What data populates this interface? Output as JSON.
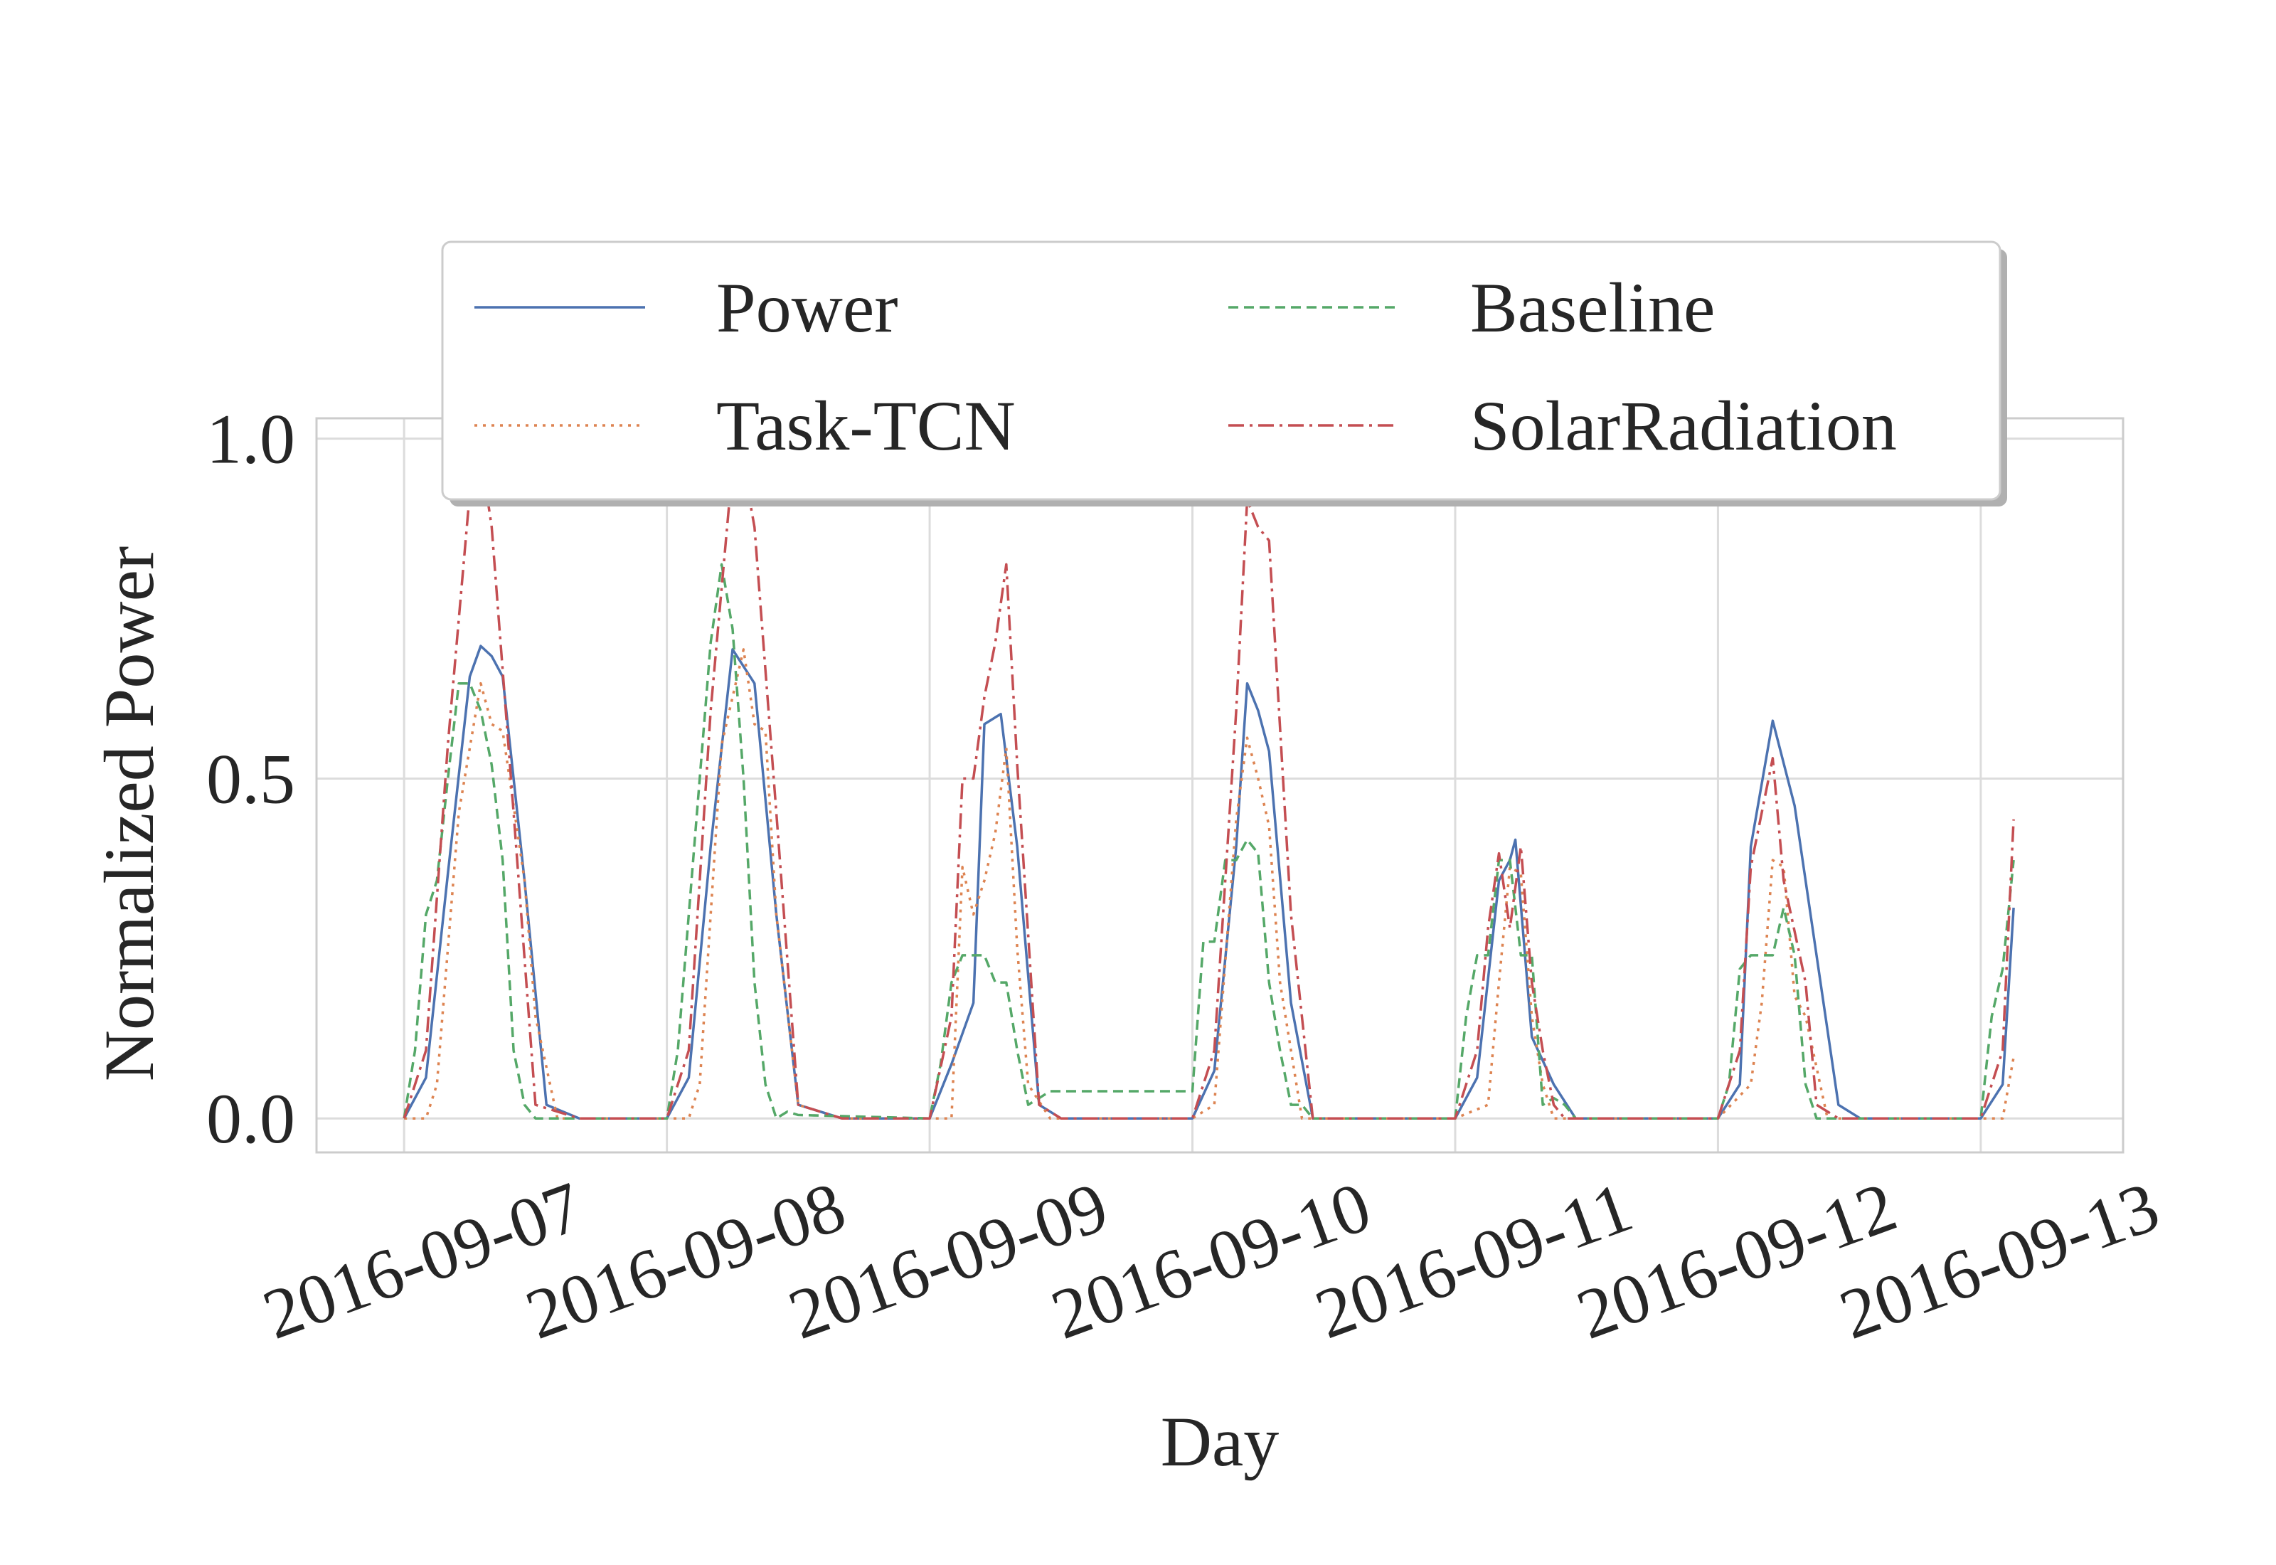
{
  "chart_data": {
    "type": "line",
    "title": "",
    "xlabel": "Day",
    "ylabel": "Normalized Power",
    "xlim": [
      "2016-09-06 16:00",
      "2016-09-13 13:00"
    ],
    "ylim": [
      -0.05,
      1.03
    ],
    "grid": true,
    "legend": {
      "placement": "top-center",
      "columns": 2
    },
    "x_ticks": [
      "2016-09-07",
      "2016-09-08",
      "2016-09-09",
      "2016-09-10",
      "2016-09-11",
      "2016-09-12",
      "2016-09-13"
    ],
    "y_ticks": [
      "0.0",
      "0.5",
      "1.0"
    ],
    "x_tick_values": [
      "2016-09-07 00:00",
      "2016-09-08 00:00",
      "2016-09-09 00:00",
      "2016-09-10 00:00",
      "2016-09-11 00:00",
      "2016-09-12 00:00",
      "2016-09-13 00:00"
    ],
    "y_tick_values": [
      0.0,
      0.5,
      1.0
    ],
    "series": [
      {
        "name": "Power",
        "color": "#4c72b0",
        "dash": "solid",
        "points": [
          [
            "2016-09-07 00:00",
            0.0
          ],
          [
            "2016-09-07 02:00",
            0.06
          ],
          [
            "2016-09-07 04:00",
            0.36
          ],
          [
            "2016-09-07 06:00",
            0.65
          ],
          [
            "2016-09-07 07:00",
            0.695
          ],
          [
            "2016-09-07 08:00",
            0.68
          ],
          [
            "2016-09-07 09:00",
            0.65
          ],
          [
            "2016-09-07 11:00",
            0.35
          ],
          [
            "2016-09-07 13:00",
            0.02
          ],
          [
            "2016-09-07 16:00",
            0.0
          ],
          [
            "2016-09-08 00:00",
            0.0
          ],
          [
            "2016-09-08 02:00",
            0.06
          ],
          [
            "2016-09-08 04:00",
            0.4
          ],
          [
            "2016-09-08 06:00",
            0.69
          ],
          [
            "2016-09-08 08:00",
            0.64
          ],
          [
            "2016-09-08 10:00",
            0.3
          ],
          [
            "2016-09-08 12:00",
            0.02
          ],
          [
            "2016-09-08 16:00",
            0.0
          ],
          [
            "2016-09-09 00:00",
            0.0
          ],
          [
            "2016-09-09 02:00",
            0.08
          ],
          [
            "2016-09-09 04:00",
            0.17
          ],
          [
            "2016-09-09 05:00",
            0.58
          ],
          [
            "2016-09-09 06:00",
            0.59
          ],
          [
            "2016-09-09 06:30",
            0.595
          ],
          [
            "2016-09-09 08:00",
            0.4
          ],
          [
            "2016-09-09 10:00",
            0.02
          ],
          [
            "2016-09-09 12:00",
            0.0
          ],
          [
            "2016-09-10 00:00",
            0.0
          ],
          [
            "2016-09-10 02:00",
            0.07
          ],
          [
            "2016-09-10 04:00",
            0.4
          ],
          [
            "2016-09-10 05:00",
            0.64
          ],
          [
            "2016-09-10 06:00",
            0.6
          ],
          [
            "2016-09-10 07:00",
            0.54
          ],
          [
            "2016-09-10 09:00",
            0.17
          ],
          [
            "2016-09-10 11:00",
            0.0
          ],
          [
            "2016-09-11 00:00",
            0.0
          ],
          [
            "2016-09-11 02:00",
            0.06
          ],
          [
            "2016-09-11 04:00",
            0.35
          ],
          [
            "2016-09-11 05:00",
            0.38
          ],
          [
            "2016-09-11 05:30",
            0.41
          ],
          [
            "2016-09-11 07:00",
            0.12
          ],
          [
            "2016-09-11 09:00",
            0.05
          ],
          [
            "2016-09-11 11:00",
            0.0
          ],
          [
            "2016-09-12 00:00",
            0.0
          ],
          [
            "2016-09-12 02:00",
            0.05
          ],
          [
            "2016-09-12 03:00",
            0.4
          ],
          [
            "2016-09-12 05:00",
            0.585
          ],
          [
            "2016-09-12 07:00",
            0.46
          ],
          [
            "2016-09-12 09:00",
            0.24
          ],
          [
            "2016-09-12 11:00",
            0.02
          ],
          [
            "2016-09-12 13:00",
            0.0
          ],
          [
            "2016-09-13 00:00",
            0.0
          ],
          [
            "2016-09-13 02:00",
            0.05
          ],
          [
            "2016-09-13 03:00",
            0.31
          ]
        ]
      },
      {
        "name": "Task-TCN",
        "color": "#dd8452",
        "dash": "dotted",
        "points": [
          [
            "2016-09-07 00:00",
            0.0
          ],
          [
            "2016-09-07 02:00",
            0.0
          ],
          [
            "2016-09-07 03:00",
            0.05
          ],
          [
            "2016-09-07 05:00",
            0.45
          ],
          [
            "2016-09-07 07:00",
            0.64
          ],
          [
            "2016-09-07 08:00",
            0.58
          ],
          [
            "2016-09-07 09:00",
            0.57
          ],
          [
            "2016-09-07 11:00",
            0.35
          ],
          [
            "2016-09-07 12:00",
            0.15
          ],
          [
            "2016-09-07 14:00",
            0.0
          ],
          [
            "2016-09-07 16:00",
            0.0
          ],
          [
            "2016-09-08 00:00",
            0.0
          ],
          [
            "2016-09-08 02:00",
            0.0
          ],
          [
            "2016-09-08 03:00",
            0.05
          ],
          [
            "2016-09-08 05:00",
            0.55
          ],
          [
            "2016-09-08 07:00",
            0.69
          ],
          [
            "2016-09-08 08:00",
            0.58
          ],
          [
            "2016-09-08 09:00",
            0.57
          ],
          [
            "2016-09-08 10:00",
            0.3
          ],
          [
            "2016-09-08 12:00",
            0.02
          ],
          [
            "2016-09-08 16:00",
            0.0
          ],
          [
            "2016-09-09 00:00",
            0.0
          ],
          [
            "2016-09-09 02:00",
            0.0
          ],
          [
            "2016-09-09 03:00",
            0.37
          ],
          [
            "2016-09-09 04:00",
            0.3
          ],
          [
            "2016-09-09 05:00",
            0.35
          ],
          [
            "2016-09-09 06:00",
            0.42
          ],
          [
            "2016-09-09 07:00",
            0.545
          ],
          [
            "2016-09-09 08:00",
            0.25
          ],
          [
            "2016-09-09 09:00",
            0.05
          ],
          [
            "2016-09-09 11:00",
            0.0
          ],
          [
            "2016-09-10 00:00",
            0.0
          ],
          [
            "2016-09-10 02:00",
            0.02
          ],
          [
            "2016-09-10 04:00",
            0.44
          ],
          [
            "2016-09-10 05:00",
            0.56
          ],
          [
            "2016-09-10 06:00",
            0.5
          ],
          [
            "2016-09-10 07:00",
            0.43
          ],
          [
            "2016-09-10 08:00",
            0.2
          ],
          [
            "2016-09-10 10:00",
            0.0
          ],
          [
            "2016-09-11 00:00",
            0.0
          ],
          [
            "2016-09-11 03:00",
            0.02
          ],
          [
            "2016-09-11 04:00",
            0.2
          ],
          [
            "2016-09-11 05:00",
            0.37
          ],
          [
            "2016-09-11 06:00",
            0.36
          ],
          [
            "2016-09-11 07:00",
            0.15
          ],
          [
            "2016-09-11 08:00",
            0.05
          ],
          [
            "2016-09-11 09:00",
            0.0
          ],
          [
            "2016-09-12 00:00",
            0.0
          ],
          [
            "2016-09-12 03:00",
            0.05
          ],
          [
            "2016-09-12 04:00",
            0.17
          ],
          [
            "2016-09-12 05:00",
            0.38
          ],
          [
            "2016-09-12 06:00",
            0.37
          ],
          [
            "2016-09-12 07:00",
            0.18
          ],
          [
            "2016-09-12 08:00",
            0.15
          ],
          [
            "2016-09-12 10:00",
            0.0
          ],
          [
            "2016-09-13 00:00",
            0.0
          ],
          [
            "2016-09-13 02:00",
            0.0
          ],
          [
            "2016-09-13 03:00",
            0.09
          ]
        ]
      },
      {
        "name": "Baseline",
        "color": "#55a868",
        "dash": "dashed",
        "points": [
          [
            "2016-09-07 00:00",
            0.0
          ],
          [
            "2016-09-07 01:00",
            0.1
          ],
          [
            "2016-09-07 02:00",
            0.3
          ],
          [
            "2016-09-07 03:00",
            0.35
          ],
          [
            "2016-09-07 04:00",
            0.5
          ],
          [
            "2016-09-07 05:00",
            0.64
          ],
          [
            "2016-09-07 06:00",
            0.64
          ],
          [
            "2016-09-07 07:00",
            0.6
          ],
          [
            "2016-09-07 08:00",
            0.52
          ],
          [
            "2016-09-07 09:00",
            0.38
          ],
          [
            "2016-09-07 10:00",
            0.1
          ],
          [
            "2016-09-07 11:00",
            0.02
          ],
          [
            "2016-09-07 12:00",
            0.0
          ],
          [
            "2016-09-08 00:00",
            0.0
          ],
          [
            "2016-09-08 01:00",
            0.1
          ],
          [
            "2016-09-08 02:00",
            0.3
          ],
          [
            "2016-09-08 03:00",
            0.5
          ],
          [
            "2016-09-08 04:00",
            0.7
          ],
          [
            "2016-09-08 05:00",
            0.815
          ],
          [
            "2016-09-08 06:00",
            0.72
          ],
          [
            "2016-09-08 07:00",
            0.5
          ],
          [
            "2016-09-08 08:00",
            0.2
          ],
          [
            "2016-09-08 09:00",
            0.05
          ],
          [
            "2016-09-08 10:00",
            0.0
          ],
          [
            "2016-09-08 11:00",
            0.01
          ],
          [
            "2016-09-08 12:00",
            0.005
          ],
          [
            "2016-09-09 00:00",
            0.0
          ],
          [
            "2016-09-09 01:00",
            0.08
          ],
          [
            "2016-09-09 02:00",
            0.2
          ],
          [
            "2016-09-09 03:00",
            0.24
          ],
          [
            "2016-09-09 04:00",
            0.24
          ],
          [
            "2016-09-09 05:00",
            0.24
          ],
          [
            "2016-09-09 06:00",
            0.2
          ],
          [
            "2016-09-09 07:00",
            0.2
          ],
          [
            "2016-09-09 08:00",
            0.1
          ],
          [
            "2016-09-09 09:00",
            0.02
          ],
          [
            "2016-09-09 10:00",
            0.03
          ],
          [
            "2016-09-09 11:00",
            0.04
          ],
          [
            "2016-09-10 00:00",
            0.04
          ],
          [
            "2016-09-10 01:00",
            0.26
          ],
          [
            "2016-09-10 02:00",
            0.26
          ],
          [
            "2016-09-10 03:00",
            0.38
          ],
          [
            "2016-09-10 04:00",
            0.38
          ],
          [
            "2016-09-10 05:00",
            0.41
          ],
          [
            "2016-09-10 06:00",
            0.39
          ],
          [
            "2016-09-10 07:00",
            0.2
          ],
          [
            "2016-09-10 08:00",
            0.1
          ],
          [
            "2016-09-10 09:00",
            0.02
          ],
          [
            "2016-09-10 10:00",
            0.02
          ],
          [
            "2016-09-10 11:00",
            0.0
          ],
          [
            "2016-09-11 00:00",
            0.0
          ],
          [
            "2016-09-11 01:00",
            0.15
          ],
          [
            "2016-09-11 02:00",
            0.24
          ],
          [
            "2016-09-11 03:00",
            0.24
          ],
          [
            "2016-09-11 04:00",
            0.38
          ],
          [
            "2016-09-11 05:00",
            0.38
          ],
          [
            "2016-09-11 06:00",
            0.24
          ],
          [
            "2016-09-11 07:00",
            0.24
          ],
          [
            "2016-09-11 08:00",
            0.02
          ],
          [
            "2016-09-11 09:00",
            0.03
          ],
          [
            "2016-09-11 10:00",
            0.02
          ],
          [
            "2016-09-11 11:00",
            0.0
          ],
          [
            "2016-09-12 00:00",
            0.0
          ],
          [
            "2016-09-12 01:00",
            0.05
          ],
          [
            "2016-09-12 02:00",
            0.22
          ],
          [
            "2016-09-12 03:00",
            0.24
          ],
          [
            "2016-09-12 04:00",
            0.24
          ],
          [
            "2016-09-12 05:00",
            0.24
          ],
          [
            "2016-09-12 06:00",
            0.31
          ],
          [
            "2016-09-12 07:00",
            0.24
          ],
          [
            "2016-09-12 08:00",
            0.05
          ],
          [
            "2016-09-12 09:00",
            0.0
          ],
          [
            "2016-09-12 10:00",
            0.0
          ],
          [
            "2016-09-13 00:00",
            0.0
          ],
          [
            "2016-09-13 01:00",
            0.15
          ],
          [
            "2016-09-13 02:00",
            0.22
          ],
          [
            "2016-09-13 03:00",
            0.38
          ]
        ]
      },
      {
        "name": "SolarRadiation",
        "color": "#c44e52",
        "dash": "dashdot",
        "points": [
          [
            "2016-09-07 00:00",
            0.0
          ],
          [
            "2016-09-07 02:00",
            0.1
          ],
          [
            "2016-09-07 04:00",
            0.55
          ],
          [
            "2016-09-07 06:00",
            0.92
          ],
          [
            "2016-09-07 07:00",
            0.98
          ],
          [
            "2016-09-07 08:00",
            0.87
          ],
          [
            "2016-09-07 10:00",
            0.45
          ],
          [
            "2016-09-07 12:00",
            0.02
          ],
          [
            "2016-09-07 16:00",
            0.0
          ],
          [
            "2016-09-08 00:00",
            0.0
          ],
          [
            "2016-09-08 02:00",
            0.1
          ],
          [
            "2016-09-08 04:00",
            0.6
          ],
          [
            "2016-09-08 06:00",
            0.96
          ],
          [
            "2016-09-08 07:00",
            0.96
          ],
          [
            "2016-09-08 08:00",
            0.87
          ],
          [
            "2016-09-08 10:00",
            0.45
          ],
          [
            "2016-09-08 12:00",
            0.02
          ],
          [
            "2016-09-08 16:00",
            0.0
          ],
          [
            "2016-09-09 00:00",
            0.0
          ],
          [
            "2016-09-09 02:00",
            0.15
          ],
          [
            "2016-09-09 03:00",
            0.5
          ],
          [
            "2016-09-09 04:00",
            0.5
          ],
          [
            "2016-09-09 05:00",
            0.62
          ],
          [
            "2016-09-09 06:00",
            0.7
          ],
          [
            "2016-09-09 07:00",
            0.815
          ],
          [
            "2016-09-09 08:00",
            0.52
          ],
          [
            "2016-09-09 10:00",
            0.02
          ],
          [
            "2016-09-09 12:00",
            0.0
          ],
          [
            "2016-09-10 00:00",
            0.0
          ],
          [
            "2016-09-10 02:00",
            0.1
          ],
          [
            "2016-09-10 04:00",
            0.6
          ],
          [
            "2016-09-10 05:00",
            0.91
          ],
          [
            "2016-09-10 06:00",
            0.87
          ],
          [
            "2016-09-10 07:00",
            0.85
          ],
          [
            "2016-09-10 09:00",
            0.3
          ],
          [
            "2016-09-10 11:00",
            0.0
          ],
          [
            "2016-09-11 00:00",
            0.0
          ],
          [
            "2016-09-11 02:00",
            0.1
          ],
          [
            "2016-09-11 03:00",
            0.28
          ],
          [
            "2016-09-11 04:00",
            0.39
          ],
          [
            "2016-09-11 05:00",
            0.28
          ],
          [
            "2016-09-11 06:00",
            0.4
          ],
          [
            "2016-09-11 07:00",
            0.2
          ],
          [
            "2016-09-11 08:00",
            0.1
          ],
          [
            "2016-09-11 09:00",
            0.02
          ],
          [
            "2016-09-11 10:00",
            0.0
          ],
          [
            "2016-09-12 00:00",
            0.0
          ],
          [
            "2016-09-12 02:00",
            0.1
          ],
          [
            "2016-09-12 03:00",
            0.37
          ],
          [
            "2016-09-12 05:00",
            0.53
          ],
          [
            "2016-09-12 06:00",
            0.35
          ],
          [
            "2016-09-12 08:00",
            0.2
          ],
          [
            "2016-09-12 09:00",
            0.02
          ],
          [
            "2016-09-12 11:00",
            0.0
          ],
          [
            "2016-09-13 00:00",
            0.0
          ],
          [
            "2016-09-13 02:00",
            0.1
          ],
          [
            "2016-09-13 03:00",
            0.44
          ]
        ]
      }
    ]
  }
}
